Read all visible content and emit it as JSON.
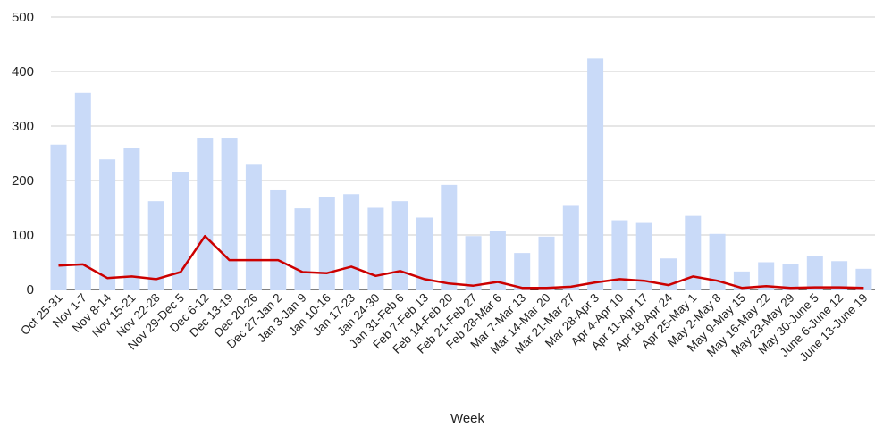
{
  "chart_data": {
    "type": "bar",
    "title": "",
    "xlabel": "Week",
    "ylabel": "",
    "ylim": [
      0,
      500
    ],
    "yticks": [
      0,
      100,
      200,
      300,
      400,
      500
    ],
    "grid": true,
    "legend": "none",
    "categories": [
      "Oct 25-31",
      "Nov 1-7",
      "Nov 8-14",
      "Nov 15-21",
      "Nov 22-28",
      "Nov 29-Dec 5",
      "Dec 6-12",
      "Dec 13-19",
      "Dec 20-26",
      "Dec 27-Jan 2",
      "Jan 3-Jan 9",
      "Jan 10-16",
      "Jan 17-23",
      "Jan 24-30",
      "Jan 31-Feb 6",
      "Feb 7-Feb 13",
      "Feb 14-Feb 20",
      "Feb 21-Feb 27",
      "Feb 28-Mar 6",
      "Mar 7-Mar 13",
      "Mar 14-Mar 20",
      "Mar 21-Mar 27",
      "Mar 28-Apr 3",
      "Apr 4-Apr 10",
      "Apr 11-Apr 17",
      "Apr 18-Apr 24",
      "Apr 25-May 1",
      "May 2-May 8",
      "May 9-May 15",
      "May 16-May 22",
      "May 23-May 29",
      "May 30-June 5",
      "June 6-June 12",
      "June 13-June 19"
    ],
    "series": [
      {
        "type": "bar",
        "color": "#c9daf8",
        "values": [
          266,
          361,
          239,
          259,
          162,
          215,
          277,
          277,
          229,
          182,
          149,
          170,
          175,
          150,
          162,
          132,
          192,
          98,
          108,
          67,
          97,
          155,
          424,
          127,
          122,
          57,
          135,
          102,
          33,
          50,
          47,
          62,
          52,
          38
        ]
      },
      {
        "type": "line",
        "color": "#cc0000",
        "values": [
          44,
          46,
          21,
          24,
          19,
          32,
          98,
          54,
          54,
          54,
          32,
          30,
          42,
          25,
          34,
          19,
          11,
          7,
          14,
          3,
          3,
          5,
          13,
          19,
          16,
          8,
          24,
          16,
          3,
          6,
          3,
          4,
          4,
          3
        ]
      }
    ]
  }
}
